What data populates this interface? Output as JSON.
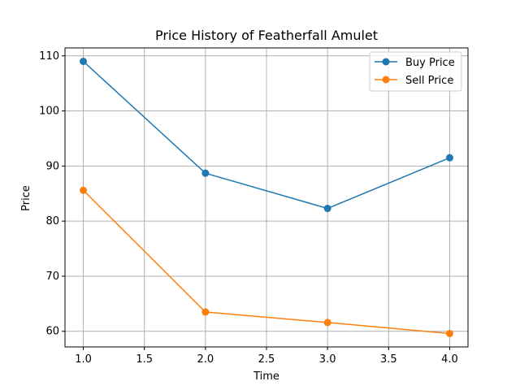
{
  "chart_data": {
    "type": "line",
    "title": "Price History of Featherfall Amulet",
    "xlabel": "Time",
    "ylabel": "Price",
    "xlim": [
      0.85,
      4.15
    ],
    "ylim": [
      57.16,
      111.44
    ],
    "x_ticks": [
      1.0,
      1.5,
      2.0,
      2.5,
      3.0,
      3.5,
      4.0
    ],
    "y_ticks": [
      60,
      70,
      80,
      90,
      100,
      110
    ],
    "x_tick_labels": [
      "1.0",
      "1.5",
      "2.0",
      "2.5",
      "3.0",
      "3.5",
      "4.0"
    ],
    "y_tick_labels": [
      "60",
      "70",
      "80",
      "90",
      "100",
      "110"
    ],
    "grid": true,
    "legend_position": "top-right",
    "series": [
      {
        "name": "Buy Price",
        "color": "#1f77b4",
        "x": [
          1,
          2,
          3,
          4
        ],
        "values": [
          109,
          88.7,
          82.3,
          91.5
        ]
      },
      {
        "name": "Sell Price",
        "color": "#ff7f0e",
        "x": [
          1,
          2,
          3,
          4
        ],
        "values": [
          85.6,
          63.5,
          61.6,
          59.6
        ]
      }
    ]
  }
}
